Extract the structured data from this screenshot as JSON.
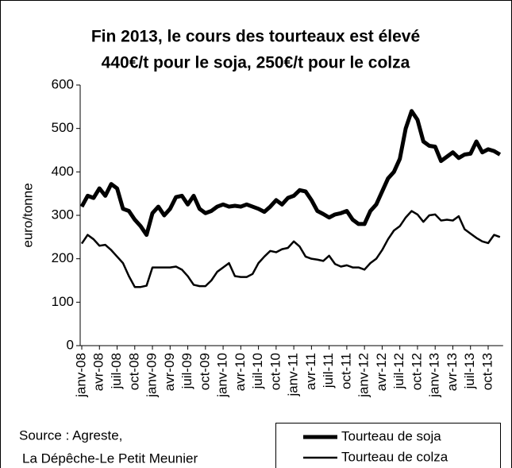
{
  "chart_data": {
    "type": "line",
    "title": [
      "Fin 2013, le cours des tourteaux est élevé",
      "440€/t pour le soja, 250€/t pour le colza"
    ],
    "ylabel": "euro/tonne",
    "source": [
      "Source : Agreste,",
      "La Dépêche-Le Petit Meunier"
    ],
    "categories": [
      "janv-08",
      null,
      null,
      "avr-08",
      null,
      null,
      "juil-08",
      null,
      null,
      "oct-08",
      null,
      null,
      "janv-09",
      null,
      null,
      "avr-09",
      null,
      null,
      "juil-09",
      null,
      null,
      "oct-09",
      null,
      null,
      "janv-10",
      null,
      null,
      "avr-10",
      null,
      null,
      "juil-10",
      null,
      null,
      "oct-10",
      null,
      null,
      "janv-11",
      null,
      null,
      "avr-11",
      null,
      null,
      "juil-11",
      null,
      null,
      "oct-11",
      null,
      null,
      "janv-12",
      null,
      null,
      "avr-12",
      null,
      null,
      "juil-12",
      null,
      null,
      "oct-12",
      null,
      null,
      "janv-13",
      null,
      null,
      "avr-13",
      null,
      null,
      "juil-13",
      null,
      null,
      "oct-13",
      null,
      null
    ],
    "series": [
      {
        "name": "Tourteau de soja",
        "color": "#000000",
        "values": [
          320,
          345,
          340,
          362,
          345,
          372,
          362,
          315,
          310,
          290,
          275,
          255,
          305,
          320,
          300,
          315,
          342,
          345,
          325,
          345,
          315,
          305,
          310,
          320,
          325,
          320,
          322,
          320,
          325,
          320,
          315,
          308,
          320,
          335,
          325,
          340,
          345,
          358,
          355,
          335,
          310,
          303,
          295,
          302,
          305,
          310,
          290,
          280,
          280,
          310,
          325,
          355,
          385,
          400,
          430,
          500,
          540,
          520,
          470,
          460,
          458,
          425,
          435,
          445,
          432,
          440,
          442,
          470,
          445,
          452,
          448,
          440
        ]
      },
      {
        "name": "Tourteau de colza",
        "color": "#000000",
        "values": [
          235,
          255,
          245,
          230,
          232,
          220,
          205,
          190,
          160,
          135,
          135,
          138,
          180,
          180,
          180,
          180,
          182,
          175,
          160,
          140,
          137,
          137,
          150,
          170,
          180,
          190,
          160,
          158,
          158,
          165,
          190,
          205,
          218,
          215,
          222,
          225,
          240,
          228,
          205,
          200,
          198,
          195,
          207,
          188,
          182,
          185,
          180,
          180,
          175,
          190,
          200,
          220,
          245,
          265,
          275,
          295,
          310,
          302,
          285,
          300,
          302,
          288,
          290,
          288,
          298,
          268,
          258,
          248,
          240,
          236,
          255,
          250
        ]
      }
    ],
    "ylim": [
      0,
      600
    ],
    "yticks": [
      0,
      100,
      200,
      300,
      400,
      500,
      600
    ],
    "grid": false
  }
}
